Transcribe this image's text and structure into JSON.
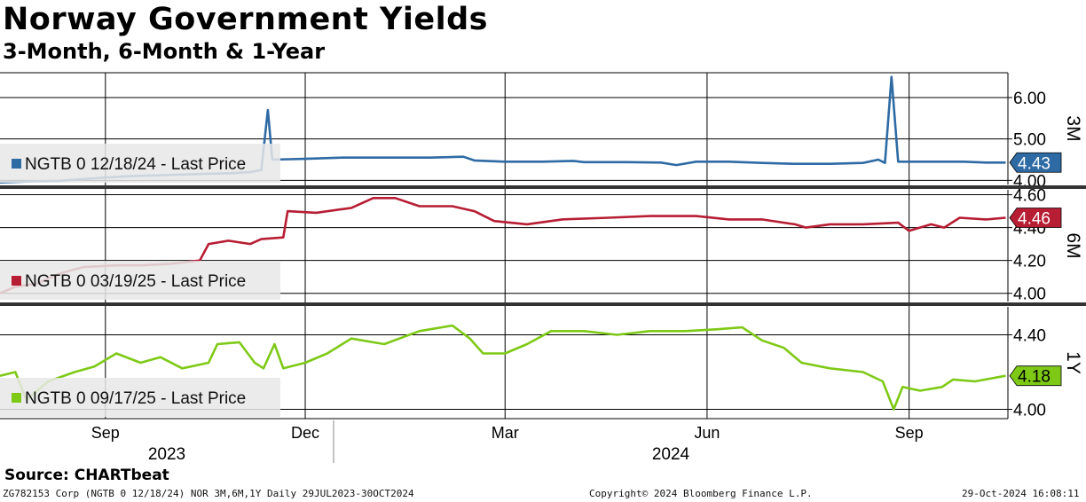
{
  "title": "Norway Government Yields",
  "subtitle": "3-Month, 6-Month & 1-Year",
  "source": "Source: CHARTbeat",
  "footer": {
    "left": "ZG782153 Corp (NGTB 0 12/18/24) NOR 3M,6M,1Y  Daily 29JUL2023-30OCT2024",
    "center": "Copyright© 2024 Bloomberg Finance L.P.",
    "right": "29-Oct-2024 16:08:11"
  },
  "colors": {
    "m3": "#2e6aa4",
    "m6": "#b71d33",
    "y1": "#7ec916"
  },
  "chart_data": {
    "type": "line",
    "x_range": [
      "2023-07-29",
      "2024-10-30"
    ],
    "month_ticks": [
      {
        "label": "Sep",
        "date": "2023-09-15"
      },
      {
        "label": "Dec",
        "date": "2023-12-15"
      },
      {
        "label": "Mar",
        "date": "2024-03-15"
      },
      {
        "label": "Jun",
        "date": "2024-06-15"
      },
      {
        "label": "Sep",
        "date": "2024-09-15"
      }
    ],
    "year_labels": [
      "2023",
      "2024"
    ],
    "panels": [
      {
        "key": "m3",
        "name": "3M",
        "legend": "NGTB 0 12/18/24 - Last Price",
        "ylim": [
          3.9,
          6.6
        ],
        "ticks": [
          "6.00",
          "5.00",
          "4.00"
        ],
        "last": "4.43",
        "points": [
          [
            "2023-07-29",
            3.95
          ],
          [
            "2023-08-10",
            3.97
          ],
          [
            "2023-08-25",
            3.99
          ],
          [
            "2023-09-10",
            4.05
          ],
          [
            "2023-09-25",
            4.1
          ],
          [
            "2023-10-10",
            4.12
          ],
          [
            "2023-10-25",
            4.15
          ],
          [
            "2023-11-10",
            4.17
          ],
          [
            "2023-11-20",
            4.2
          ],
          [
            "2023-11-25",
            4.25
          ],
          [
            "2023-11-28",
            5.7
          ],
          [
            "2023-11-30",
            4.5
          ],
          [
            "2023-12-15",
            4.52
          ],
          [
            "2024-01-01",
            4.55
          ],
          [
            "2024-01-20",
            4.55
          ],
          [
            "2024-02-10",
            4.55
          ],
          [
            "2024-02-25",
            4.57
          ],
          [
            "2024-03-01",
            4.48
          ],
          [
            "2024-03-15",
            4.45
          ],
          [
            "2024-04-01",
            4.45
          ],
          [
            "2024-04-15",
            4.47
          ],
          [
            "2024-04-20",
            4.44
          ],
          [
            "2024-05-10",
            4.44
          ],
          [
            "2024-05-25",
            4.43
          ],
          [
            "2024-06-01",
            4.37
          ],
          [
            "2024-06-10",
            4.45
          ],
          [
            "2024-06-25",
            4.45
          ],
          [
            "2024-07-10",
            4.42
          ],
          [
            "2024-07-25",
            4.4
          ],
          [
            "2024-08-10",
            4.4
          ],
          [
            "2024-08-25",
            4.42
          ],
          [
            "2024-09-01",
            4.5
          ],
          [
            "2024-09-04",
            4.42
          ],
          [
            "2024-09-07",
            6.5
          ],
          [
            "2024-09-10",
            4.45
          ],
          [
            "2024-09-25",
            4.45
          ],
          [
            "2024-10-10",
            4.45
          ],
          [
            "2024-10-20",
            4.43
          ],
          [
            "2024-10-29",
            4.43
          ]
        ]
      },
      {
        "key": "m6",
        "name": "6M",
        "legend": "NGTB 0 03/19/25 - Last Price",
        "ylim": [
          3.95,
          4.63
        ],
        "ticks": [
          "4.60",
          "4.40",
          "4.20",
          "4.00"
        ],
        "last": "4.46",
        "points": [
          [
            "2023-07-29",
            4.0
          ],
          [
            "2023-08-05",
            4.04
          ],
          [
            "2023-08-15",
            4.06
          ],
          [
            "2023-08-25",
            4.12
          ],
          [
            "2023-09-05",
            4.16
          ],
          [
            "2023-09-20",
            4.17
          ],
          [
            "2023-10-01",
            4.17
          ],
          [
            "2023-10-15",
            4.18
          ],
          [
            "2023-10-28",
            4.2
          ],
          [
            "2023-11-01",
            4.3
          ],
          [
            "2023-11-10",
            4.32
          ],
          [
            "2023-11-20",
            4.3
          ],
          [
            "2023-11-25",
            4.33
          ],
          [
            "2023-12-05",
            4.34
          ],
          [
            "2023-12-07",
            4.5
          ],
          [
            "2023-12-20",
            4.49
          ],
          [
            "2024-01-05",
            4.52
          ],
          [
            "2024-01-15",
            4.58
          ],
          [
            "2024-01-25",
            4.58
          ],
          [
            "2024-02-05",
            4.53
          ],
          [
            "2024-02-20",
            4.53
          ],
          [
            "2024-03-01",
            4.5
          ],
          [
            "2024-03-10",
            4.44
          ],
          [
            "2024-03-25",
            4.42
          ],
          [
            "2024-04-10",
            4.45
          ],
          [
            "2024-05-01",
            4.46
          ],
          [
            "2024-05-20",
            4.47
          ],
          [
            "2024-06-10",
            4.47
          ],
          [
            "2024-06-25",
            4.45
          ],
          [
            "2024-07-10",
            4.45
          ],
          [
            "2024-07-25",
            4.42
          ],
          [
            "2024-07-30",
            4.4
          ],
          [
            "2024-08-10",
            4.42
          ],
          [
            "2024-08-25",
            4.42
          ],
          [
            "2024-09-10",
            4.43
          ],
          [
            "2024-09-15",
            4.38
          ],
          [
            "2024-09-25",
            4.42
          ],
          [
            "2024-10-01",
            4.4
          ],
          [
            "2024-10-08",
            4.46
          ],
          [
            "2024-10-20",
            4.45
          ],
          [
            "2024-10-29",
            4.46
          ]
        ]
      },
      {
        "key": "y1",
        "name": "1Y",
        "legend": "NGTB 0 09/17/25 - Last Price",
        "ylim": [
          3.95,
          4.55
        ],
        "ticks": [
          "4.40",
          "4.00"
        ],
        "last": "4.18",
        "points": [
          [
            "2023-07-29",
            4.18
          ],
          [
            "2023-08-05",
            4.2
          ],
          [
            "2023-08-10",
            4.05
          ],
          [
            "2023-08-20",
            4.15
          ],
          [
            "2023-09-01",
            4.2
          ],
          [
            "2023-09-10",
            4.23
          ],
          [
            "2023-09-20",
            4.3
          ],
          [
            "2023-10-01",
            4.25
          ],
          [
            "2023-10-10",
            4.28
          ],
          [
            "2023-10-20",
            4.22
          ],
          [
            "2023-11-01",
            4.25
          ],
          [
            "2023-11-05",
            4.35
          ],
          [
            "2023-11-15",
            4.36
          ],
          [
            "2023-11-22",
            4.25
          ],
          [
            "2023-11-26",
            4.22
          ],
          [
            "2023-12-01",
            4.35
          ],
          [
            "2023-12-05",
            4.22
          ],
          [
            "2023-12-15",
            4.25
          ],
          [
            "2023-12-25",
            4.3
          ],
          [
            "2024-01-05",
            4.38
          ],
          [
            "2024-01-20",
            4.35
          ],
          [
            "2024-02-05",
            4.42
          ],
          [
            "2024-02-20",
            4.45
          ],
          [
            "2024-02-28",
            4.38
          ],
          [
            "2024-03-05",
            4.3
          ],
          [
            "2024-03-15",
            4.3
          ],
          [
            "2024-03-25",
            4.35
          ],
          [
            "2024-04-05",
            4.42
          ],
          [
            "2024-04-20",
            4.42
          ],
          [
            "2024-05-05",
            4.4
          ],
          [
            "2024-05-20",
            4.42
          ],
          [
            "2024-06-05",
            4.42
          ],
          [
            "2024-06-20",
            4.43
          ],
          [
            "2024-07-01",
            4.44
          ],
          [
            "2024-07-10",
            4.37
          ],
          [
            "2024-07-20",
            4.33
          ],
          [
            "2024-07-28",
            4.25
          ],
          [
            "2024-08-10",
            4.22
          ],
          [
            "2024-08-25",
            4.2
          ],
          [
            "2024-09-03",
            4.15
          ],
          [
            "2024-09-08",
            4.0
          ],
          [
            "2024-09-12",
            4.12
          ],
          [
            "2024-09-20",
            4.1
          ],
          [
            "2024-09-30",
            4.12
          ],
          [
            "2024-10-05",
            4.16
          ],
          [
            "2024-10-15",
            4.15
          ],
          [
            "2024-10-29",
            4.18
          ]
        ]
      }
    ]
  }
}
